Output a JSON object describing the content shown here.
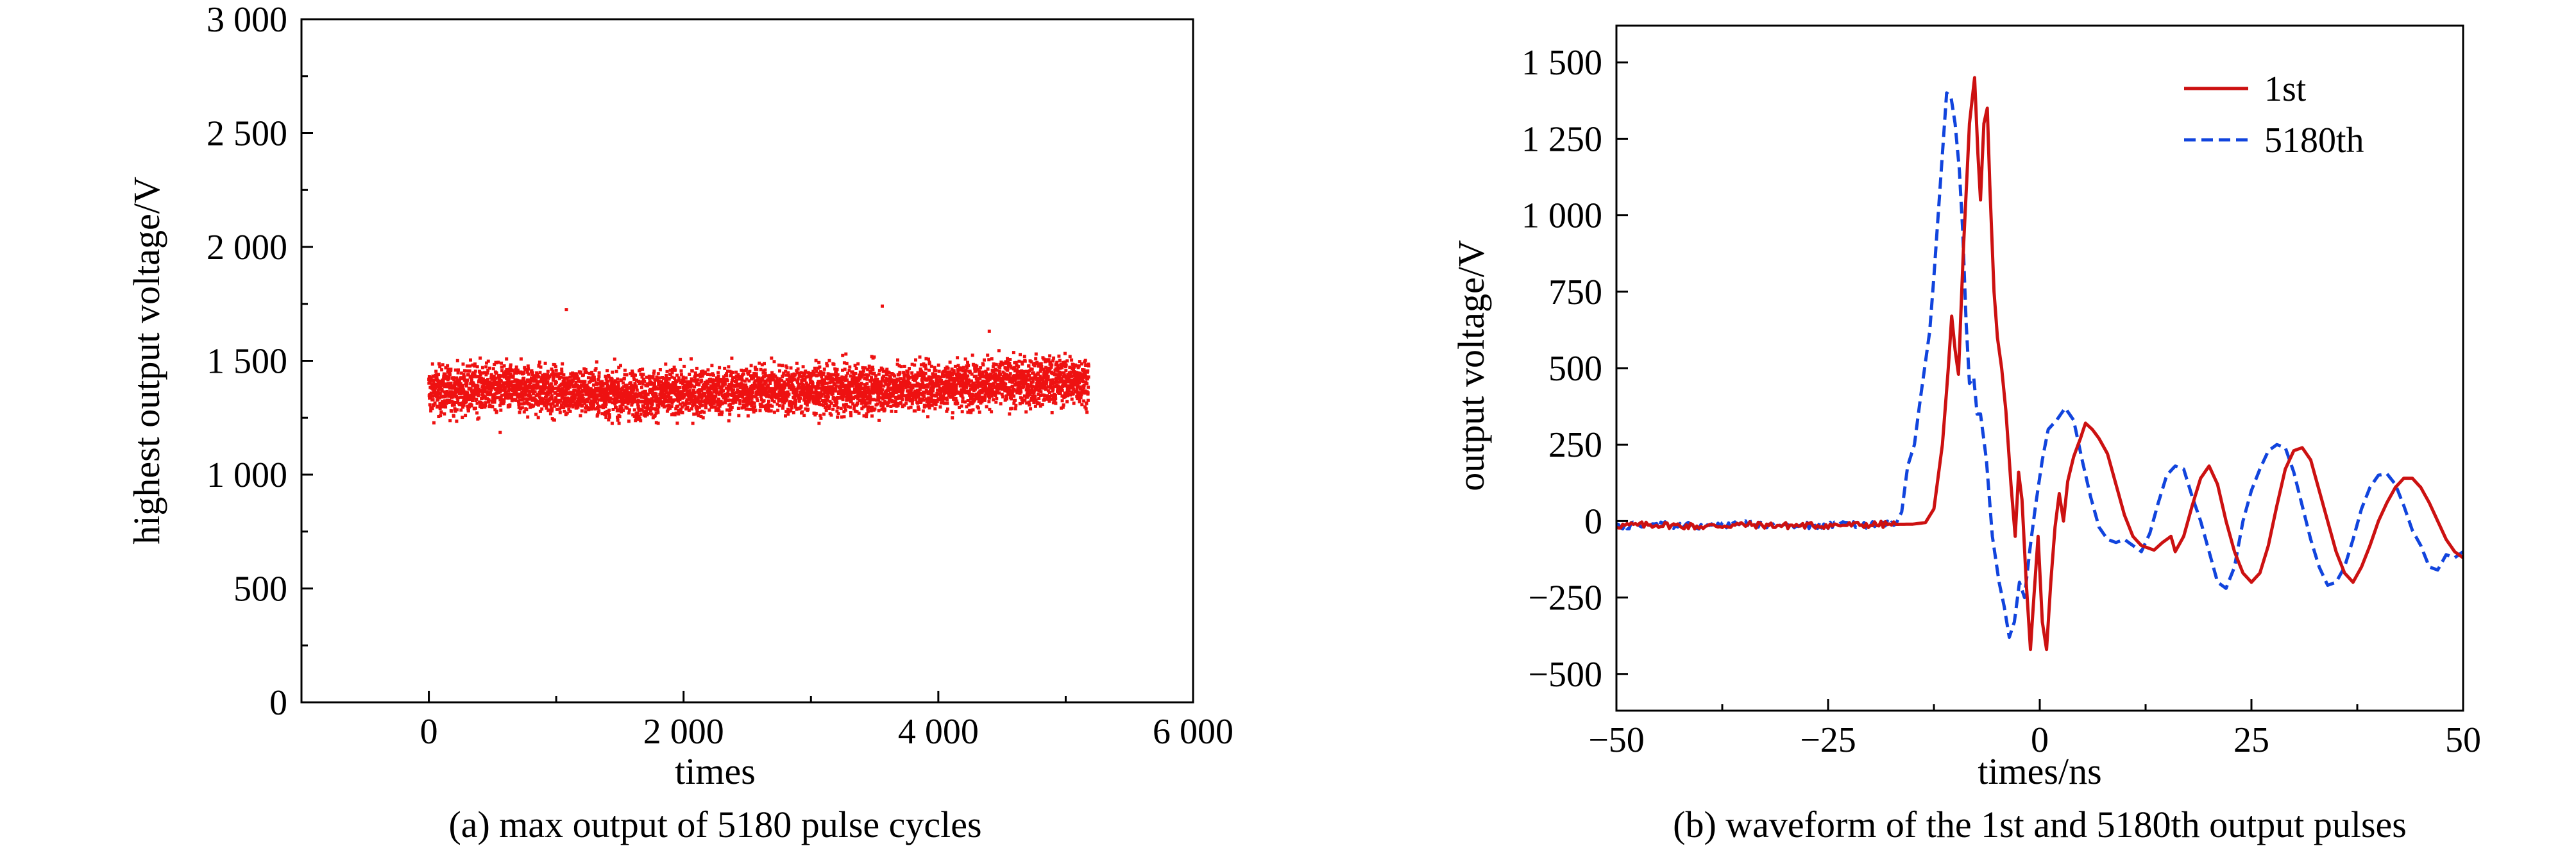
{
  "chart_data": [
    {
      "id": "a",
      "type": "scatter",
      "caption": "(a) max output of 5180 pulse cycles",
      "xlabel": "times",
      "ylabel": "highest output voltage/V",
      "xlim": [
        -1000,
        6000
      ],
      "ylim": [
        0,
        3000
      ],
      "xticks": [
        0,
        2000,
        4000,
        6000
      ],
      "xtick_labels": [
        "0",
        "2 000",
        "4 000",
        "6 000"
      ],
      "yticks": [
        0,
        500,
        1000,
        1500,
        2000,
        2500,
        3000
      ],
      "ytick_labels": [
        "0",
        "500",
        "1 000",
        "1 500",
        "2 000",
        "2 500",
        "3 000"
      ],
      "color": "#ee1111",
      "series": [
        {
          "n_points": 5180,
          "x_range": [
            0,
            5180
          ],
          "y_band_center": [
            1365,
            1380,
            1370,
            1350,
            1360,
            1375,
            1370,
            1380,
            1395,
            1405,
            1415
          ],
          "y_band_spread": 70,
          "y_min": 1185,
          "y_max": 1740,
          "outliers": [
            {
              "x": 1080,
              "y": 1725
            },
            {
              "x": 3560,
              "y": 1740
            },
            {
              "x": 560,
              "y": 1185
            },
            {
              "x": 4400,
              "y": 1630
            }
          ]
        }
      ],
      "grid": false,
      "legend": "none"
    },
    {
      "id": "b",
      "type": "line",
      "caption": "(b) waveform of the 1st and 5180th output pulses",
      "xlabel": "times/ns",
      "ylabel": "output voltage/V",
      "xlim": [
        -50,
        50
      ],
      "ylim": [
        -620,
        1620
      ],
      "xticks": [
        -50,
        -25,
        0,
        25,
        50
      ],
      "xtick_labels": [
        "−50",
        "−25",
        "0",
        "25",
        "50"
      ],
      "yticks": [
        -500,
        -250,
        0,
        250,
        500,
        750,
        1000,
        1250,
        1500
      ],
      "ytick_labels": [
        "−500",
        "−250",
        "0",
        "250",
        "500",
        "750",
        "1 000",
        "1 250",
        "1 500"
      ],
      "legend": "top-right",
      "grid": false,
      "series": [
        {
          "name": "1st",
          "color": "#cc1111",
          "dash": "solid",
          "points": [
            [
              -50,
              -15
            ],
            [
              -45,
              -12
            ],
            [
              -40,
              -18
            ],
            [
              -35,
              -12
            ],
            [
              -30,
              -15
            ],
            [
              -25,
              -14
            ],
            [
              -20,
              -12
            ],
            [
              -15,
              -10
            ],
            [
              -13.5,
              -5
            ],
            [
              -12.5,
              40
            ],
            [
              -11.5,
              250
            ],
            [
              -10.8,
              500
            ],
            [
              -10.4,
              670
            ],
            [
              -10,
              560
            ],
            [
              -9.6,
              480
            ],
            [
              -9,
              900
            ],
            [
              -8.3,
              1300
            ],
            [
              -7.7,
              1450
            ],
            [
              -7.3,
              1200
            ],
            [
              -7,
              1050
            ],
            [
              -6.6,
              1300
            ],
            [
              -6.2,
              1350
            ],
            [
              -5.9,
              1100
            ],
            [
              -5.4,
              750
            ],
            [
              -5,
              600
            ],
            [
              -4.5,
              500
            ],
            [
              -4,
              360
            ],
            [
              -3.4,
              120
            ],
            [
              -2.9,
              -50
            ],
            [
              -2.5,
              160
            ],
            [
              -2.1,
              70
            ],
            [
              -1.6,
              -200
            ],
            [
              -1.1,
              -420
            ],
            [
              -0.7,
              -250
            ],
            [
              -0.2,
              -50
            ],
            [
              0.3,
              -330
            ],
            [
              0.8,
              -420
            ],
            [
              1.3,
              -200
            ],
            [
              1.8,
              -20
            ],
            [
              2.3,
              90
            ],
            [
              2.8,
              0
            ],
            [
              3.3,
              130
            ],
            [
              4,
              210
            ],
            [
              4.8,
              270
            ],
            [
              5.4,
              320
            ],
            [
              6.2,
              300
            ],
            [
              7,
              270
            ],
            [
              8,
              220
            ],
            [
              9,
              120
            ],
            [
              10,
              20
            ],
            [
              11,
              -50
            ],
            [
              12,
              -80
            ],
            [
              13.5,
              -95
            ],
            [
              14.5,
              -70
            ],
            [
              15.5,
              -50
            ],
            [
              16,
              -100
            ],
            [
              17,
              -50
            ],
            [
              18,
              50
            ],
            [
              19,
              140
            ],
            [
              20,
              180
            ],
            [
              21,
              120
            ],
            [
              22,
              0
            ],
            [
              23,
              -100
            ],
            [
              24,
              -170
            ],
            [
              25,
              -200
            ],
            [
              26,
              -170
            ],
            [
              27,
              -80
            ],
            [
              28,
              50
            ],
            [
              29,
              170
            ],
            [
              30,
              230
            ],
            [
              31,
              240
            ],
            [
              32,
              200
            ],
            [
              33,
              100
            ],
            [
              34,
              0
            ],
            [
              35,
              -100
            ],
            [
              36,
              -170
            ],
            [
              37,
              -200
            ],
            [
              38,
              -150
            ],
            [
              39,
              -80
            ],
            [
              40,
              0
            ],
            [
              41,
              60
            ],
            [
              42,
              110
            ],
            [
              43,
              140
            ],
            [
              44,
              140
            ],
            [
              45,
              110
            ],
            [
              46,
              60
            ],
            [
              47,
              0
            ],
            [
              48,
              -60
            ],
            [
              49,
              -100
            ],
            [
              50,
              -120
            ]
          ]
        },
        {
          "name": "5180th",
          "color": "#1144dd",
          "dash": "dashed",
          "points": [
            [
              -50,
              -15
            ],
            [
              -45,
              -12
            ],
            [
              -40,
              -16
            ],
            [
              -35,
              -10
            ],
            [
              -30,
              -15
            ],
            [
              -25,
              -14
            ],
            [
              -20,
              -12
            ],
            [
              -17,
              -10
            ],
            [
              -16.3,
              30
            ],
            [
              -15.6,
              180
            ],
            [
              -14.8,
              250
            ],
            [
              -14.2,
              380
            ],
            [
              -13.5,
              520
            ],
            [
              -13,
              620
            ],
            [
              -12.5,
              800
            ],
            [
              -12,
              1000
            ],
            [
              -11.5,
              1200
            ],
            [
              -11,
              1400
            ],
            [
              -10.5,
              1390
            ],
            [
              -10,
              1300
            ],
            [
              -9.5,
              1150
            ],
            [
              -9.1,
              950
            ],
            [
              -8.7,
              650
            ],
            [
              -8.3,
              450
            ],
            [
              -7.8,
              470
            ],
            [
              -7.4,
              350
            ],
            [
              -7,
              350
            ],
            [
              -6.3,
              200
            ],
            [
              -5.6,
              -50
            ],
            [
              -4.8,
              -200
            ],
            [
              -4.2,
              -280
            ],
            [
              -3.6,
              -380
            ],
            [
              -3,
              -330
            ],
            [
              -2.4,
              -200
            ],
            [
              -1.8,
              -250
            ],
            [
              -1.2,
              -100
            ],
            [
              -0.5,
              50
            ],
            [
              0.3,
              200
            ],
            [
              1,
              300
            ],
            [
              2,
              330
            ],
            [
              3,
              370
            ],
            [
              4,
              330
            ],
            [
              5,
              200
            ],
            [
              6,
              80
            ],
            [
              7,
              -20
            ],
            [
              8,
              -60
            ],
            [
              9,
              -70
            ],
            [
              10,
              -60
            ],
            [
              11,
              -80
            ],
            [
              12,
              -100
            ],
            [
              13,
              -40
            ],
            [
              14,
              60
            ],
            [
              15,
              150
            ],
            [
              16,
              180
            ],
            [
              17,
              170
            ],
            [
              18,
              80
            ],
            [
              19,
              0
            ],
            [
              20,
              -100
            ],
            [
              21,
              -200
            ],
            [
              22,
              -220
            ],
            [
              23,
              -150
            ],
            [
              24,
              0
            ],
            [
              25,
              100
            ],
            [
              26,
              170
            ],
            [
              27,
              230
            ],
            [
              28,
              250
            ],
            [
              29,
              240
            ],
            [
              30,
              160
            ],
            [
              31,
              50
            ],
            [
              32,
              -60
            ],
            [
              33,
              -150
            ],
            [
              34,
              -210
            ],
            [
              35,
              -200
            ],
            [
              36,
              -150
            ],
            [
              37,
              -60
            ],
            [
              38,
              40
            ],
            [
              39,
              110
            ],
            [
              40,
              150
            ],
            [
              41,
              155
            ],
            [
              42,
              120
            ],
            [
              43,
              50
            ],
            [
              44,
              -30
            ],
            [
              45,
              -80
            ],
            [
              46,
              -150
            ],
            [
              47,
              -160
            ],
            [
              48,
              -110
            ],
            [
              49,
              -120
            ],
            [
              50,
              -100
            ]
          ]
        }
      ]
    }
  ]
}
